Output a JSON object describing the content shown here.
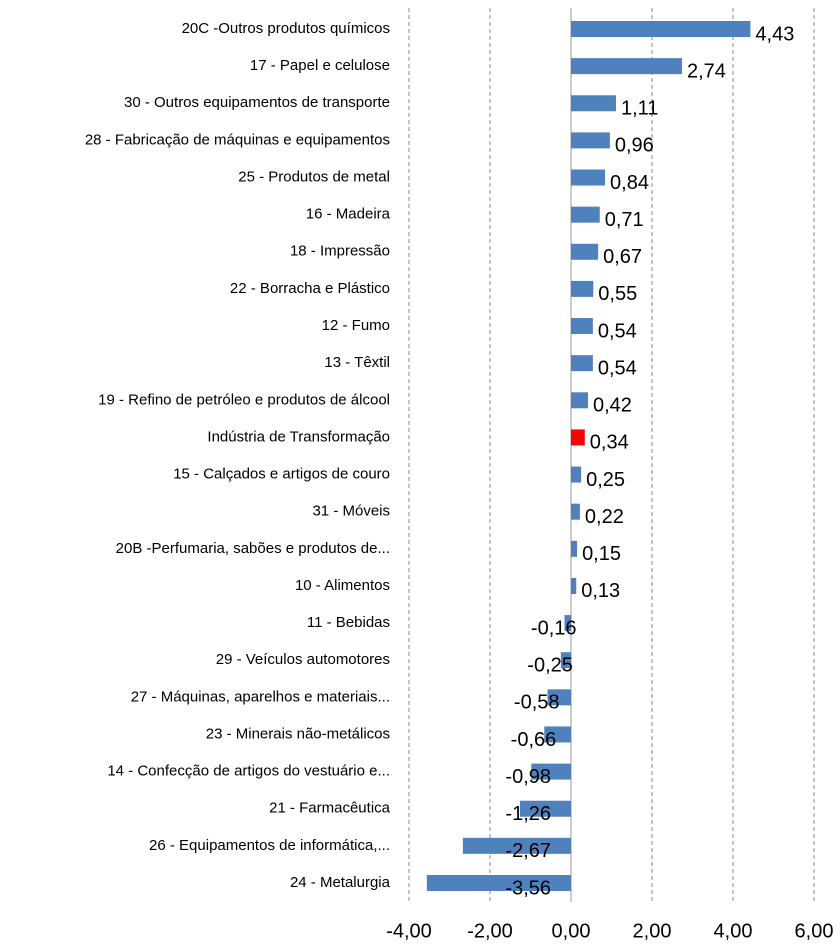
{
  "chart_data": {
    "type": "bar",
    "orientation": "horizontal",
    "categories": [
      "20C -Outros produtos químicos",
      "17 - Papel e celulose",
      "30 - Outros equipamentos de transporte",
      "28 - Fabricação de máquinas e equipamentos",
      "25 - Produtos de metal",
      "16 - Madeira",
      "18 - Impressão",
      "22 - Borracha e Plástico",
      "12 - Fumo",
      "13 - Têxtil",
      "19 - Refino de petróleo e produtos de álcool",
      "Indústria de Transformação",
      "15 - Calçados e artigos de couro",
      "31 - Móveis",
      "20B -Perfumaria, sabões e produtos de...",
      "10 - Alimentos",
      "11 - Bebidas",
      "29 - Veículos automotores",
      "27 - Máquinas, aparelhos e materiais...",
      "23 - Minerais não-metálicos",
      "14 - Confecção de artigos do vestuário e...",
      "21 - Farmacêutica",
      "26 - Equipamentos de informática,...",
      "24 - Metalurgia"
    ],
    "values": [
      4.43,
      2.74,
      1.11,
      0.96,
      0.84,
      0.71,
      0.67,
      0.55,
      0.54,
      0.54,
      0.42,
      0.34,
      0.25,
      0.22,
      0.15,
      0.13,
      -0.16,
      -0.25,
      -0.58,
      -0.66,
      -0.98,
      -1.26,
      -2.67,
      -3.56
    ],
    "value_labels": [
      "4,43",
      "2,74",
      "1,11",
      "0,96",
      "0,84",
      "0,71",
      "0,67",
      "0,55",
      "0,54",
      "0,54",
      "0,42",
      "0,34",
      "0,25",
      "0,22",
      "0,15",
      "0,13",
      "-0,16",
      "-0,25",
      "-0,58",
      "-0,66",
      "-0,98",
      "-1,26",
      "-2,67",
      "-3,56"
    ],
    "colors": [
      "#4f81bd",
      "#4f81bd",
      "#4f81bd",
      "#4f81bd",
      "#4f81bd",
      "#4f81bd",
      "#4f81bd",
      "#4f81bd",
      "#4f81bd",
      "#4f81bd",
      "#4f81bd",
      "#ff0000",
      "#4f81bd",
      "#4f81bd",
      "#4f81bd",
      "#4f81bd",
      "#4f81bd",
      "#4f81bd",
      "#4f81bd",
      "#4f81bd",
      "#4f81bd",
      "#4f81bd",
      "#4f81bd",
      "#4f81bd"
    ],
    "xlim": [
      -4,
      6
    ],
    "xticks": [
      {
        "value": -4,
        "label": "-4,00"
      },
      {
        "value": -2,
        "label": "-2,00"
      },
      {
        "value": 0,
        "label": "0,00"
      },
      {
        "value": 2,
        "label": "2,00"
      },
      {
        "value": 4,
        "label": "4,00"
      },
      {
        "value": 6,
        "label": "6,00"
      }
    ],
    "grid": true
  }
}
